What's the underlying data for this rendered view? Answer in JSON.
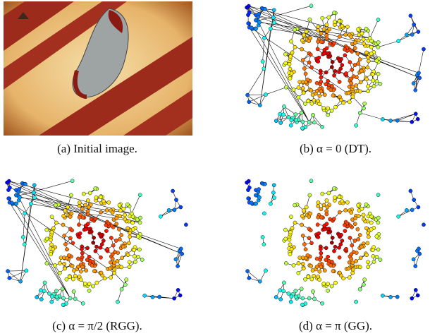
{
  "figure": {
    "subfigures": [
      {
        "caption": "(a) Initial image."
      },
      {
        "caption": "(b) α = 0 (DT)."
      },
      {
        "caption": "(c) α = π/2 (RGG)."
      },
      {
        "caption": "(d) α = π (GG)."
      }
    ]
  }
}
